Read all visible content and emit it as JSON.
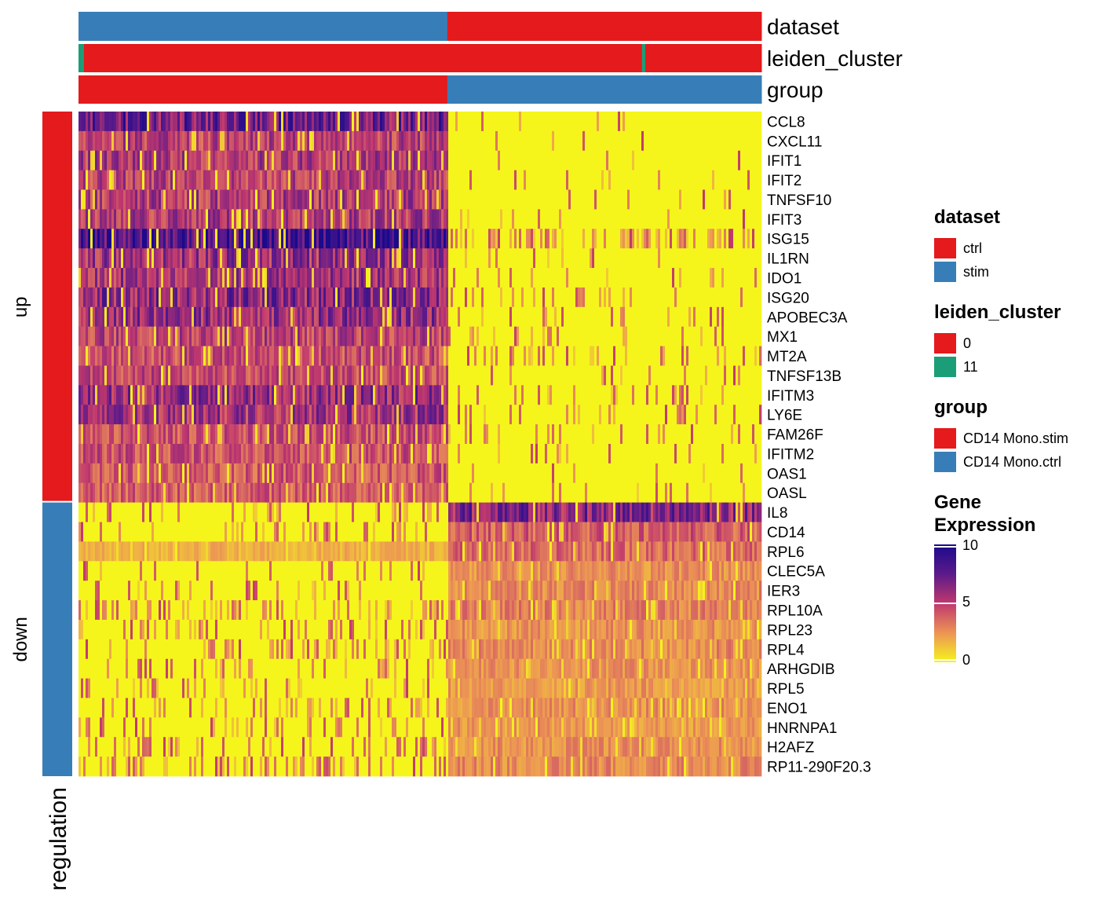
{
  "chart_data": {
    "type": "heatmap",
    "title": "",
    "annotation_tracks": [
      {
        "name": "dataset",
        "segments": [
          {
            "level": "stim",
            "from": 0,
            "to": 0.54
          },
          {
            "level": "ctrl",
            "from": 0.54,
            "to": 1.0
          }
        ]
      },
      {
        "name": "leiden_cluster",
        "segments": [
          {
            "level": "11",
            "from": 0,
            "to": 0.008
          },
          {
            "level": "0",
            "from": 0.008,
            "to": 0.825
          },
          {
            "level": "11",
            "from": 0.825,
            "to": 0.83
          },
          {
            "level": "0",
            "from": 0.83,
            "to": 1.0
          }
        ]
      },
      {
        "name": "group",
        "segments": [
          {
            "level": "CD14 Mono.stim",
            "from": 0,
            "to": 0.54
          },
          {
            "level": "CD14 Mono.ctrl",
            "from": 0.54,
            "to": 1.0
          }
        ]
      }
    ],
    "row_split": {
      "title": "regulation",
      "groups": [
        {
          "name": "up",
          "color": "#e41a1c",
          "count": 20
        },
        {
          "name": "down",
          "color": "#377eb8",
          "count": 14
        }
      ]
    },
    "genes": [
      {
        "name": "CCL8",
        "regulation": "up",
        "stim_mean": 7.2,
        "ctrl_mean": 0.1
      },
      {
        "name": "CXCL11",
        "regulation": "up",
        "stim_mean": 5.0,
        "ctrl_mean": 0.1
      },
      {
        "name": "IFIT1",
        "regulation": "up",
        "stim_mean": 5.2,
        "ctrl_mean": 0.2
      },
      {
        "name": "IFIT2",
        "regulation": "up",
        "stim_mean": 5.0,
        "ctrl_mean": 0.2
      },
      {
        "name": "TNFSF10",
        "regulation": "up",
        "stim_mean": 5.2,
        "ctrl_mean": 0.2
      },
      {
        "name": "IFIT3",
        "regulation": "up",
        "stim_mean": 5.3,
        "ctrl_mean": 0.2
      },
      {
        "name": "ISG15",
        "regulation": "up",
        "stim_mean": 8.8,
        "ctrl_mean": 1.2
      },
      {
        "name": "IL1RN",
        "regulation": "up",
        "stim_mean": 5.8,
        "ctrl_mean": 0.2
      },
      {
        "name": "IDO1",
        "regulation": "up",
        "stim_mean": 5.6,
        "ctrl_mean": 0.3
      },
      {
        "name": "ISG20",
        "regulation": "up",
        "stim_mean": 6.4,
        "ctrl_mean": 0.6
      },
      {
        "name": "APOBEC3A",
        "regulation": "up",
        "stim_mean": 6.0,
        "ctrl_mean": 0.5
      },
      {
        "name": "MX1",
        "regulation": "up",
        "stim_mean": 5.0,
        "ctrl_mean": 0.4
      },
      {
        "name": "MT2A",
        "regulation": "up",
        "stim_mean": 4.5,
        "ctrl_mean": 0.5
      },
      {
        "name": "TNFSF13B",
        "regulation": "up",
        "stim_mean": 4.6,
        "ctrl_mean": 0.3
      },
      {
        "name": "IFITM3",
        "regulation": "up",
        "stim_mean": 6.0,
        "ctrl_mean": 0.5
      },
      {
        "name": "LY6E",
        "regulation": "up",
        "stim_mean": 5.6,
        "ctrl_mean": 0.4
      },
      {
        "name": "FAM26F",
        "regulation": "up",
        "stim_mean": 4.4,
        "ctrl_mean": 0.3
      },
      {
        "name": "IFITM2",
        "regulation": "up",
        "stim_mean": 4.4,
        "ctrl_mean": 0.4
      },
      {
        "name": "OAS1",
        "regulation": "up",
        "stim_mean": 4.2,
        "ctrl_mean": 0.3
      },
      {
        "name": "OASL",
        "regulation": "up",
        "stim_mean": 4.0,
        "ctrl_mean": 0.3
      },
      {
        "name": "IL8",
        "regulation": "down",
        "stim_mean": 0.5,
        "ctrl_mean": 6.5
      },
      {
        "name": "CD14",
        "regulation": "down",
        "stim_mean": 0.5,
        "ctrl_mean": 4.0
      },
      {
        "name": "RPL6",
        "regulation": "down",
        "stim_mean": 1.8,
        "ctrl_mean": 3.6
      },
      {
        "name": "CLEC5A",
        "regulation": "down",
        "stim_mean": 0.3,
        "ctrl_mean": 2.6
      },
      {
        "name": "IER3",
        "regulation": "down",
        "stim_mean": 0.4,
        "ctrl_mean": 2.8
      },
      {
        "name": "RPL10A",
        "regulation": "down",
        "stim_mean": 0.9,
        "ctrl_mean": 3.0
      },
      {
        "name": "RPL23",
        "regulation": "down",
        "stim_mean": 0.7,
        "ctrl_mean": 2.6
      },
      {
        "name": "RPL4",
        "regulation": "down",
        "stim_mean": 0.8,
        "ctrl_mean": 2.8
      },
      {
        "name": "ARHGDIB",
        "regulation": "down",
        "stim_mean": 0.6,
        "ctrl_mean": 2.5
      },
      {
        "name": "RPL5",
        "regulation": "down",
        "stim_mean": 0.6,
        "ctrl_mean": 2.4
      },
      {
        "name": "ENO1",
        "regulation": "down",
        "stim_mean": 0.6,
        "ctrl_mean": 2.6
      },
      {
        "name": "HNRNPA1",
        "regulation": "down",
        "stim_mean": 0.6,
        "ctrl_mean": 2.4
      },
      {
        "name": "H2AFZ",
        "regulation": "down",
        "stim_mean": 0.7,
        "ctrl_mean": 2.6
      },
      {
        "name": "RP11-290F20.3",
        "regulation": "down",
        "stim_mean": 0.9,
        "ctrl_mean": 2.8
      }
    ],
    "stim_fraction": 0.54,
    "color_scale": {
      "min": 0,
      "max": 10,
      "colors": [
        "#f5f51c",
        "#ec9455",
        "#c0386e",
        "#5b1a8a",
        "#1a0a8c"
      ]
    },
    "legends": [
      {
        "title": "dataset",
        "items": [
          {
            "label": "ctrl",
            "color": "#e41a1c"
          },
          {
            "label": "stim",
            "color": "#377eb8"
          }
        ]
      },
      {
        "title": "leiden_cluster",
        "items": [
          {
            "label": "0",
            "color": "#e41a1c"
          },
          {
            "label": "11",
            "color": "#1b9e77"
          }
        ]
      },
      {
        "title": "group",
        "items": [
          {
            "label": "CD14 Mono.stim",
            "color": "#e41a1c"
          },
          {
            "label": "CD14 Mono.ctrl",
            "color": "#377eb8"
          }
        ]
      }
    ],
    "colorbar": {
      "title_line1": "Gene",
      "title_line2": "Expression",
      "ticks": [
        "10",
        "5",
        "0"
      ],
      "tick_values": [
        10,
        5,
        0
      ]
    }
  }
}
